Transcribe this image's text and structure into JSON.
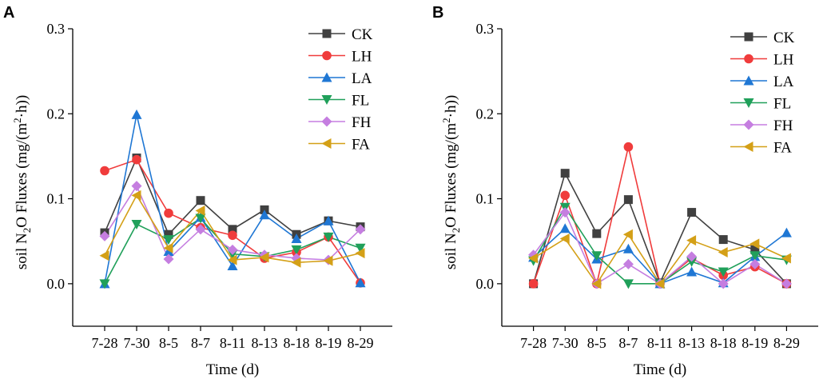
{
  "chart_data": [
    {
      "type": "line",
      "panel": "A",
      "title": "",
      "xlabel": "Time (d)",
      "ylabel": "soil N2O Fluxes (mg/(m2·h))",
      "ylabel_parts": {
        "pre": "soil  N",
        "sub": "2",
        "mid": "O  Fluxes (mg/(m",
        "sup": "2",
        "post": "·h))"
      },
      "categories": [
        "7-28",
        "7-30",
        "8-5",
        "8-7",
        "8-11",
        "8-13",
        "8-18",
        "8-19",
        "8-29"
      ],
      "ylim": [
        -0.05,
        0.3
      ],
      "yticks": [
        0.0,
        0.1,
        0.2,
        0.3
      ],
      "ytick_labels": [
        "0.0",
        "0.1",
        "0.2",
        "0.3"
      ],
      "legend_position": "top-right",
      "grid": false,
      "series": [
        {
          "name": "CK",
          "color": "#404040",
          "marker": "square",
          "values": [
            0.06,
            0.148,
            0.058,
            0.098,
            0.064,
            0.087,
            0.058,
            0.074,
            0.067
          ]
        },
        {
          "name": "LH",
          "color": "#f03c3c",
          "marker": "circle",
          "values": [
            0.133,
            0.146,
            0.083,
            0.066,
            0.057,
            0.03,
            0.037,
            0.055,
            0.001
          ]
        },
        {
          "name": "LA",
          "color": "#1f77d4",
          "marker": "triangle-up",
          "values": [
            0.0,
            0.199,
            0.038,
            0.078,
            0.021,
            0.081,
            0.053,
            0.074,
            0.001
          ]
        },
        {
          "name": "FL",
          "color": "#20a05a",
          "marker": "triangle-down",
          "values": [
            0.0,
            0.07,
            0.052,
            0.077,
            0.035,
            0.032,
            0.04,
            0.055,
            0.042
          ]
        },
        {
          "name": "FH",
          "color": "#c57ee0",
          "marker": "diamond",
          "values": [
            0.056,
            0.115,
            0.029,
            0.064,
            0.04,
            0.034,
            0.03,
            0.028,
            0.064
          ]
        },
        {
          "name": "FA",
          "color": "#d4a017",
          "marker": "triangle-left",
          "values": [
            0.033,
            0.104,
            0.042,
            0.086,
            0.028,
            0.031,
            0.025,
            0.027,
            0.036
          ]
        }
      ]
    },
    {
      "type": "line",
      "panel": "B",
      "title": "",
      "xlabel": "Time (d)",
      "ylabel": "soil N2O Fluxes (mg/(m2·h))",
      "ylabel_parts": {
        "pre": "soil  N",
        "sub": "2",
        "mid": "O  Fluxes (mg/(m",
        "sup": "2",
        "post": "·h))"
      },
      "categories": [
        "7-28",
        "7-30",
        "8-5",
        "8-7",
        "8-11",
        "8-13",
        "8-18",
        "8-19",
        "8-29"
      ],
      "ylim": [
        -0.05,
        0.3
      ],
      "yticks": [
        0.0,
        0.1,
        0.2,
        0.3
      ],
      "ytick_labels": [
        "0.0",
        "0.1",
        "0.2",
        "0.3"
      ],
      "legend_position": "top-right",
      "grid": false,
      "series": [
        {
          "name": "CK",
          "color": "#404040",
          "marker": "square",
          "values": [
            0.0,
            0.13,
            0.059,
            0.099,
            0.001,
            0.084,
            0.052,
            0.04,
            0.0
          ]
        },
        {
          "name": "LH",
          "color": "#f03c3c",
          "marker": "circle",
          "values": [
            0.0,
            0.104,
            0.0,
            0.161,
            0.0,
            0.03,
            0.01,
            0.02,
            0.0
          ]
        },
        {
          "name": "LA",
          "color": "#1f77d4",
          "marker": "triangle-up",
          "values": [
            0.031,
            0.065,
            0.029,
            0.041,
            0.0,
            0.014,
            0.001,
            0.032,
            0.06
          ]
        },
        {
          "name": "FL",
          "color": "#20a05a",
          "marker": "triangle-down",
          "values": [
            0.027,
            0.09,
            0.033,
            0.0,
            0.0,
            0.026,
            0.014,
            0.033,
            0.028
          ]
        },
        {
          "name": "FH",
          "color": "#c57ee0",
          "marker": "diamond",
          "values": [
            0.034,
            0.084,
            0.0,
            0.023,
            0.0,
            0.032,
            0.0,
            0.023,
            0.0
          ]
        },
        {
          "name": "FA",
          "color": "#d4a017",
          "marker": "triangle-left",
          "values": [
            0.03,
            0.053,
            0.0,
            0.058,
            0.0,
            0.051,
            0.037,
            0.047,
            0.03
          ]
        }
      ]
    }
  ]
}
